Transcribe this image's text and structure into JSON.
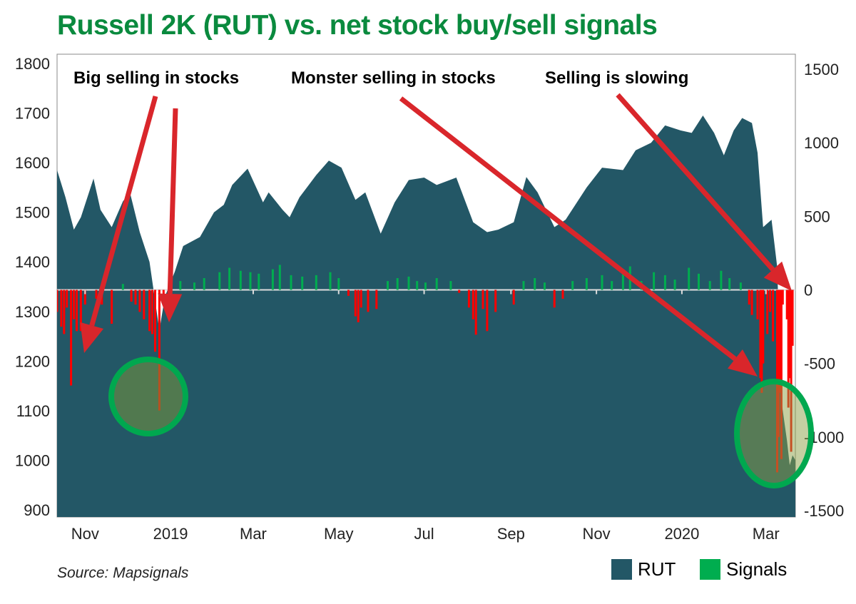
{
  "title": "Russell 2K (RUT) vs. net stock buy/sell signals",
  "source": "Source: Mapsignals",
  "colors": {
    "title": "#0a8a3e",
    "rut": "#235766",
    "signals_pos": "#00ad4f",
    "signals_neg": "#ff0000",
    "arrow": "#d9262b",
    "circle": "#00a84f"
  },
  "annotations": [
    "Big selling in stocks",
    "Monster selling in stocks",
    "Selling is slowing"
  ],
  "legend": [
    {
      "label": "RUT",
      "color": "#235766"
    },
    {
      "label": "Signals",
      "color": "#00ad4f"
    }
  ],
  "chart_data": {
    "type": "area+bar",
    "title": "Russell 2K (RUT) vs. net stock buy/sell signals",
    "x_range": [
      "2018-10-12",
      "2020-03-22"
    ],
    "x_ticks": [
      [
        "2018-11-01",
        "Nov"
      ],
      [
        "2019-01-01",
        "2019"
      ],
      [
        "2019-03-01",
        "Mar"
      ],
      [
        "2019-05-01",
        "May"
      ],
      [
        "2019-07-01",
        "Jul"
      ],
      [
        "2019-09-01",
        "Sep"
      ],
      [
        "2019-11-01",
        "Nov"
      ],
      [
        "2020-01-01",
        "2020"
      ],
      [
        "2020-03-01",
        "Mar"
      ]
    ],
    "y_left": {
      "range": [
        900,
        1800
      ],
      "ticks": [
        "900",
        "1000",
        "1100",
        "1200",
        "1300",
        "1400",
        "1500",
        "1600",
        "1700",
        "1800"
      ]
    },
    "y_right": {
      "range": [
        -1500,
        1500
      ],
      "ticks": [
        "-1500",
        "-1000",
        "-500",
        "0",
        "500",
        "1000",
        "1500"
      ]
    },
    "legend_position": "bottom-right",
    "series": [
      {
        "name": "RUT",
        "type": "area",
        "axis": "left",
        "points": [
          [
            "2018-10-12",
            1585
          ],
          [
            "2018-10-18",
            1530
          ],
          [
            "2018-10-24",
            1465
          ],
          [
            "2018-10-29",
            1490
          ],
          [
            "2018-11-07",
            1568
          ],
          [
            "2018-11-12",
            1505
          ],
          [
            "2018-11-20",
            1470
          ],
          [
            "2018-11-28",
            1522
          ],
          [
            "2018-12-03",
            1540
          ],
          [
            "2018-12-10",
            1460
          ],
          [
            "2018-12-17",
            1400
          ],
          [
            "2018-12-24",
            1262
          ],
          [
            "2018-12-28",
            1330
          ],
          [
            "2019-01-04",
            1380
          ],
          [
            "2019-01-10",
            1432
          ],
          [
            "2019-01-22",
            1450
          ],
          [
            "2019-02-01",
            1500
          ],
          [
            "2019-02-08",
            1515
          ],
          [
            "2019-02-14",
            1555
          ],
          [
            "2019-02-25",
            1588
          ],
          [
            "2019-03-08",
            1520
          ],
          [
            "2019-03-12",
            1540
          ],
          [
            "2019-03-22",
            1505
          ],
          [
            "2019-03-27",
            1490
          ],
          [
            "2019-04-03",
            1530
          ],
          [
            "2019-04-15",
            1575
          ],
          [
            "2019-04-24",
            1604
          ],
          [
            "2019-05-03",
            1590
          ],
          [
            "2019-05-13",
            1525
          ],
          [
            "2019-05-20",
            1540
          ],
          [
            "2019-05-31",
            1457
          ],
          [
            "2019-06-10",
            1520
          ],
          [
            "2019-06-20",
            1565
          ],
          [
            "2019-07-01",
            1570
          ],
          [
            "2019-07-10",
            1555
          ],
          [
            "2019-07-24",
            1570
          ],
          [
            "2019-08-05",
            1480
          ],
          [
            "2019-08-15",
            1460
          ],
          [
            "2019-08-23",
            1465
          ],
          [
            "2019-09-03",
            1480
          ],
          [
            "2019-09-12",
            1571
          ],
          [
            "2019-09-20",
            1540
          ],
          [
            "2019-10-02",
            1470
          ],
          [
            "2019-10-10",
            1485
          ],
          [
            "2019-10-25",
            1550
          ],
          [
            "2019-11-05",
            1590
          ],
          [
            "2019-11-20",
            1585
          ],
          [
            "2019-11-29",
            1625
          ],
          [
            "2019-12-10",
            1640
          ],
          [
            "2019-12-20",
            1675
          ],
          [
            "2019-12-31",
            1665
          ],
          [
            "2020-01-08",
            1660
          ],
          [
            "2020-01-16",
            1695
          ],
          [
            "2020-01-24",
            1660
          ],
          [
            "2020-01-31",
            1615
          ],
          [
            "2020-02-07",
            1665
          ],
          [
            "2020-02-13",
            1690
          ],
          [
            "2020-02-20",
            1680
          ],
          [
            "2020-02-24",
            1620
          ],
          [
            "2020-02-28",
            1470
          ],
          [
            "2020-03-05",
            1485
          ],
          [
            "2020-03-09",
            1390
          ],
          [
            "2020-03-12",
            1120
          ],
          [
            "2020-03-16",
            1040
          ],
          [
            "2020-03-18",
            990
          ],
          [
            "2020-03-20",
            1010
          ],
          [
            "2020-03-22",
            1000
          ]
        ]
      },
      {
        "name": "Signals",
        "type": "bar",
        "axis": "right",
        "points": [
          [
            "2018-10-12",
            -150
          ],
          [
            "2018-10-15",
            -250
          ],
          [
            "2018-10-17",
            -300
          ],
          [
            "2018-10-19",
            -120
          ],
          [
            "2018-10-22",
            -650
          ],
          [
            "2018-10-24",
            -200
          ],
          [
            "2018-10-26",
            -280
          ],
          [
            "2018-10-29",
            -280
          ],
          [
            "2018-11-01",
            -100
          ],
          [
            "2018-11-09",
            -60
          ],
          [
            "2018-11-13",
            -100
          ],
          [
            "2018-11-20",
            -230
          ],
          [
            "2018-11-28",
            40
          ],
          [
            "2018-12-04",
            -80
          ],
          [
            "2018-12-07",
            -100
          ],
          [
            "2018-12-10",
            -150
          ],
          [
            "2018-12-13",
            -200
          ],
          [
            "2018-12-17",
            -280
          ],
          [
            "2018-12-19",
            -300
          ],
          [
            "2018-12-21",
            -420
          ],
          [
            "2018-12-24",
            -820
          ],
          [
            "2018-12-27",
            -40
          ],
          [
            "2019-01-08",
            60
          ],
          [
            "2019-01-18",
            50
          ],
          [
            "2019-01-25",
            80
          ],
          [
            "2019-02-05",
            120
          ],
          [
            "2019-02-12",
            150
          ],
          [
            "2019-02-20",
            130
          ],
          [
            "2019-02-27",
            120
          ],
          [
            "2019-03-05",
            110
          ],
          [
            "2019-03-15",
            140
          ],
          [
            "2019-03-20",
            170
          ],
          [
            "2019-03-28",
            100
          ],
          [
            "2019-04-05",
            90
          ],
          [
            "2019-04-15",
            100
          ],
          [
            "2019-04-25",
            120
          ],
          [
            "2019-05-01",
            80
          ],
          [
            "2019-05-08",
            -40
          ],
          [
            "2019-05-13",
            -180
          ],
          [
            "2019-05-15",
            -220
          ],
          [
            "2019-05-17",
            -120
          ],
          [
            "2019-05-22",
            -150
          ],
          [
            "2019-05-28",
            -130
          ],
          [
            "2019-06-05",
            60
          ],
          [
            "2019-06-12",
            80
          ],
          [
            "2019-06-20",
            90
          ],
          [
            "2019-06-26",
            60
          ],
          [
            "2019-07-02",
            50
          ],
          [
            "2019-07-10",
            80
          ],
          [
            "2019-07-20",
            60
          ],
          [
            "2019-07-26",
            -20
          ],
          [
            "2019-08-02",
            -120
          ],
          [
            "2019-08-05",
            -200
          ],
          [
            "2019-08-07",
            -305
          ],
          [
            "2019-08-12",
            -130
          ],
          [
            "2019-08-15",
            -280
          ],
          [
            "2019-08-21",
            -150
          ],
          [
            "2019-09-03",
            -100
          ],
          [
            "2019-09-10",
            60
          ],
          [
            "2019-09-18",
            80
          ],
          [
            "2019-09-25",
            50
          ],
          [
            "2019-10-02",
            -120
          ],
          [
            "2019-10-08",
            -60
          ],
          [
            "2019-10-15",
            60
          ],
          [
            "2019-10-25",
            80
          ],
          [
            "2019-11-05",
            100
          ],
          [
            "2019-11-12",
            60
          ],
          [
            "2019-11-20",
            120
          ],
          [
            "2019-11-25",
            160
          ],
          [
            "2019-12-03",
            60
          ],
          [
            "2019-12-12",
            120
          ],
          [
            "2019-12-20",
            100
          ],
          [
            "2019-12-27",
            70
          ],
          [
            "2020-01-06",
            150
          ],
          [
            "2020-01-13",
            110
          ],
          [
            "2020-01-21",
            60
          ],
          [
            "2020-01-29",
            130
          ],
          [
            "2020-02-04",
            80
          ],
          [
            "2020-02-12",
            50
          ],
          [
            "2020-02-18",
            -100
          ],
          [
            "2020-02-20",
            -170
          ],
          [
            "2020-02-24",
            -200
          ],
          [
            "2020-02-26",
            -600
          ],
          [
            "2020-02-27",
            -700
          ],
          [
            "2020-02-28",
            -500
          ],
          [
            "2020-03-02",
            -300
          ],
          [
            "2020-03-04",
            -150
          ],
          [
            "2020-03-06",
            -350
          ],
          [
            "2020-03-09",
            -1240
          ],
          [
            "2020-03-10",
            -1000
          ],
          [
            "2020-03-11",
            -700
          ],
          [
            "2020-03-12",
            -1150
          ],
          [
            "2020-03-13",
            -100
          ],
          [
            "2020-03-16",
            -200
          ],
          [
            "2020-03-17",
            -800
          ],
          [
            "2020-03-18",
            -600
          ],
          [
            "2020-03-19",
            -1100
          ],
          [
            "2020-03-20",
            -380
          ]
        ]
      }
    ]
  }
}
